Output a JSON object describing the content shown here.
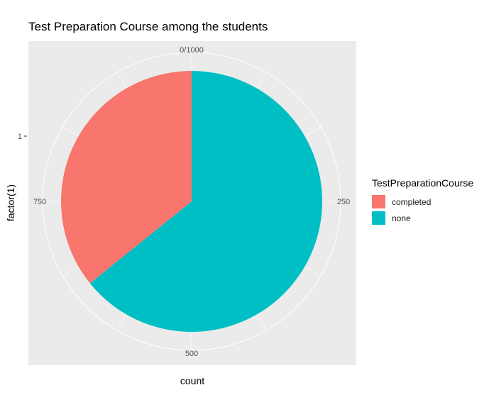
{
  "chart_data": {
    "type": "pie",
    "title": "Test Preparation Course among the students",
    "xlabel": "count",
    "ylabel": "factor(1)",
    "y_tick_labels": [
      "1"
    ],
    "radial_tick_labels": [
      "0/1000",
      "250",
      "500",
      "750"
    ],
    "radial_tick_values": [
      0,
      250,
      500,
      750
    ],
    "axis_max": 1000,
    "legend_title": "TestPreparationCourse",
    "legend_position": "right",
    "grid": true,
    "categories": [
      "none",
      "completed"
    ],
    "values": [
      642,
      358
    ],
    "legend_order": [
      "completed",
      "none"
    ],
    "colors": {
      "completed": "#F8766D",
      "none": "#00BFC4"
    }
  }
}
